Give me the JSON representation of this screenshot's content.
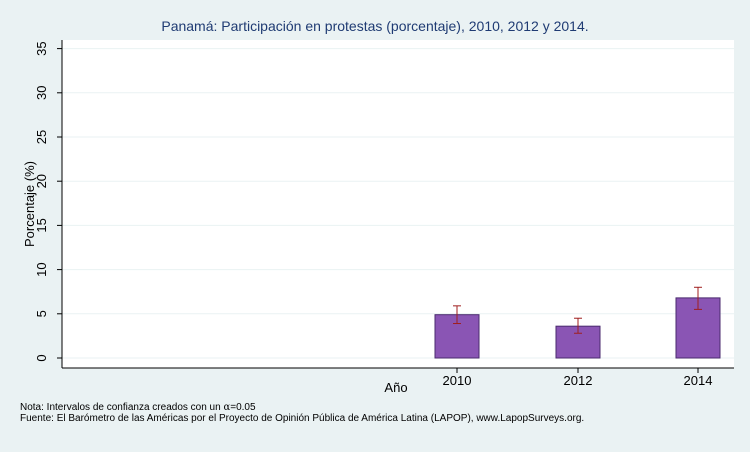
{
  "chart_data": {
    "type": "bar",
    "title": "Panamá: Participación en protestas (porcentaje), 2010, 2012 y 2014.",
    "xlabel": "Año",
    "ylabel": "Porcentaje (%)",
    "ylim": [
      0,
      35
    ],
    "yticks": [
      0,
      5,
      10,
      15,
      20,
      25,
      30,
      35
    ],
    "grid": true,
    "categories": [
      "2010",
      "2012",
      "2014"
    ],
    "series": [
      {
        "values": [
          4.9,
          3.6,
          6.8
        ],
        "ci_low": [
          3.9,
          2.8,
          5.5
        ],
        "ci_high": [
          5.9,
          4.5,
          8.0
        ]
      }
    ],
    "bar_color": "#8a55b4",
    "bar_edge_color": "#4a2a6e",
    "ci_color": "#a01e1e"
  },
  "notes": {
    "line1_prefix": "Nota: Intervalos de confianza creados con un ",
    "line1_symbol": "α",
    "line1_suffix": "=0.05",
    "line2": "Fuente: El Barómetro de las Américas por el Proyecto de Opinión Pública de América Latina (LAPOP), www.LapopSurveys.org."
  }
}
